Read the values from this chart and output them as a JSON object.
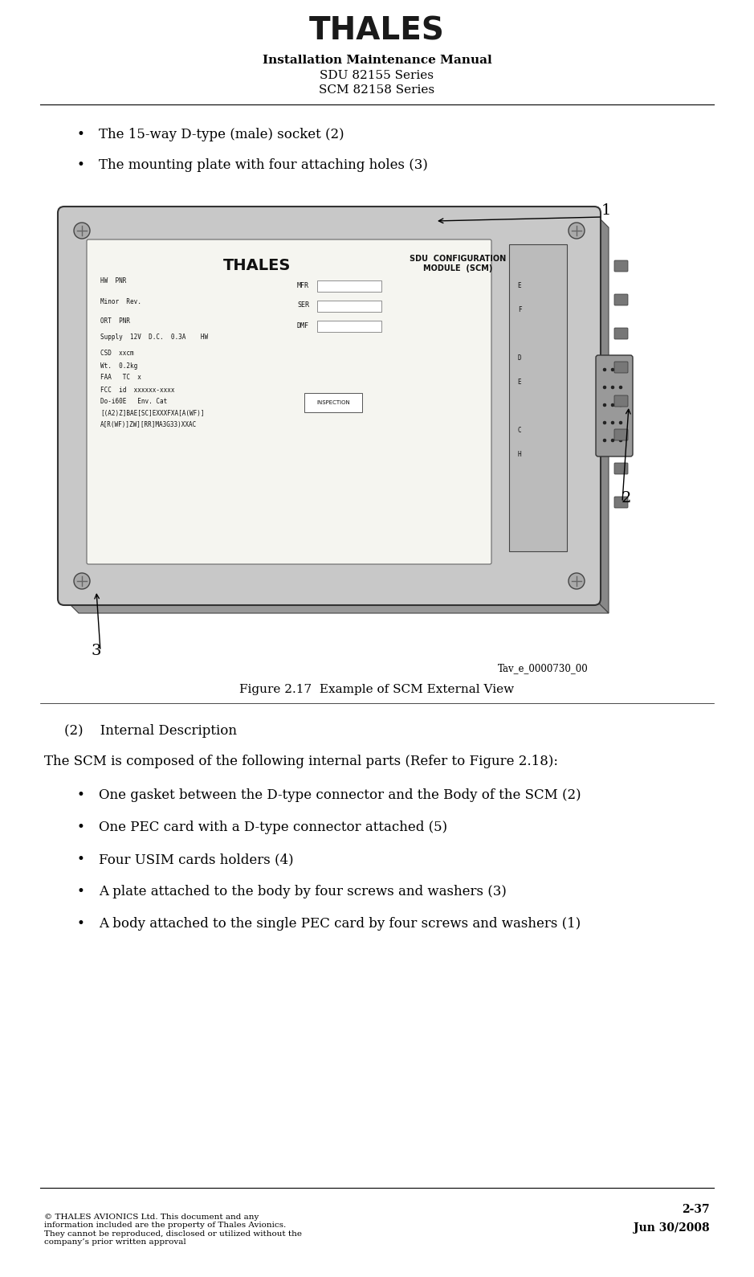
{
  "bg_color": "#ffffff",
  "title_thales": "THALES",
  "header_line1": "Installation Maintenance Manual",
  "header_line2": "SDU 82155 Series",
  "header_line3": "SCM 82158 Series",
  "bullet1": "The 15-way D-type (male) socket (2)",
  "bullet2": "The mounting plate with four attaching holes (3)",
  "figure_caption": "Figure 2.17  Example of SCM External View",
  "figure_tag": "Tav_e_0000730_00",
  "section_header": "(2)    Internal Description",
  "para1": "The SCM is composed of the following internal parts (Refer to Figure 2.18):",
  "internal_bullets": [
    "One gasket between the D-type connector and the Body of the SCM (2)",
    "One PEC card with a D-type connector attached (5)",
    "Four USIM cards holders (4)",
    "A plate attached to the body by four screws and washers (3)",
    "A body attached to the single PEC card by four screws and washers (1)"
  ],
  "footer_left": "© THALES AVIONICS Ltd. This document and any\ninformation included are the property of Thales Avionics.\nThey cannot be reproduced, disclosed or utilized without the\ncompany’s prior written approval",
  "footer_right_line1": "2-37",
  "footer_right_line2": "Jun 30/2008",
  "label1": "1",
  "label2": "2",
  "label3": "3"
}
